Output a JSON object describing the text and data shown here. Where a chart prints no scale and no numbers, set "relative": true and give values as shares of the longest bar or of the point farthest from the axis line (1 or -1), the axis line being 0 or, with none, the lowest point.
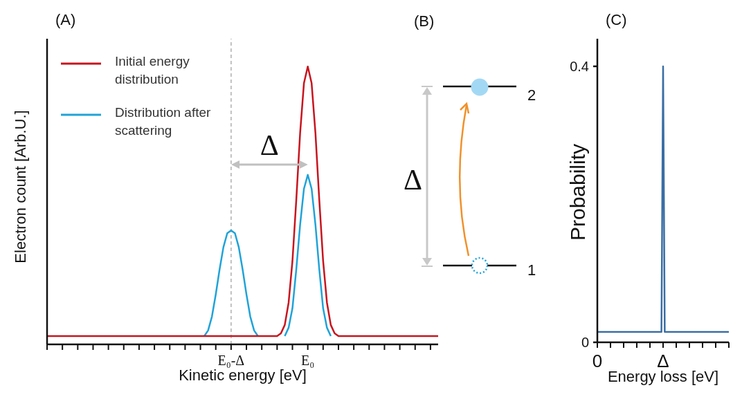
{
  "chart_data": [
    {
      "type": "line",
      "title": "(A)",
      "xlabel": "Kinetic energy [eV]",
      "ylabel": "Electron count [Arb.U.]",
      "relative": true,
      "legend": "top left",
      "categories": [
        null,
        null,
        null,
        null,
        null,
        null,
        null,
        null,
        null,
        null,
        null,
        null,
        null,
        null,
        null,
        null,
        null,
        null,
        null,
        null,
        null,
        null,
        null,
        null,
        null,
        null,
        null,
        null,
        null,
        null,
        null,
        null,
        null,
        null,
        null,
        null,
        null,
        null,
        null,
        null,
        null,
        null,
        null,
        null,
        null,
        null,
        null,
        null,
        "E₀-Δ",
        null,
        null,
        null,
        null,
        null,
        null,
        null,
        null,
        null,
        null,
        null,
        null,
        null,
        null,
        null,
        null,
        null,
        null,
        null,
        "E₀",
        null,
        null,
        null,
        null,
        null,
        null,
        null,
        null,
        null,
        null,
        null,
        null,
        null,
        null,
        null,
        null,
        null,
        null,
        null,
        null,
        null,
        null,
        null,
        null,
        null,
        null,
        null,
        null,
        null,
        null,
        null,
        null,
        null,
        null
      ],
      "series": [
        {
          "name": "Initial energy distribution",
          "color": "#c8141e",
          "values": [
            0.03,
            0.03,
            0.03,
            0.03,
            0.03,
            0.03,
            0.03,
            0.03,
            0.03,
            0.03,
            0.03,
            0.03,
            0.03,
            0.03,
            0.03,
            0.03,
            0.03,
            0.03,
            0.03,
            0.03,
            0.03,
            0.03,
            0.03,
            0.03,
            0.03,
            0.03,
            0.03,
            0.03,
            0.03,
            0.03,
            0.03,
            0.03,
            0.03,
            0.03,
            0.03,
            0.03,
            0.03,
            0.03,
            0.03,
            0.03,
            0.03,
            0.03,
            0.03,
            0.03,
            0.03,
            0.03,
            0.03,
            0.03,
            0.03,
            0.03,
            0.03,
            0.03,
            0.03,
            0.03,
            0.03,
            0.03,
            0.03,
            0.03,
            0.03,
            0.03,
            0.03,
            0.04,
            0.07,
            0.15,
            0.3,
            0.52,
            0.76,
            0.94,
            1,
            0.94,
            0.76,
            0.52,
            0.3,
            0.15,
            0.07,
            0.04,
            0.03,
            0.03,
            0.03,
            0.03,
            0.03,
            0.03,
            0.03,
            0.03,
            0.03,
            0.03,
            0.03,
            0.03,
            0.03,
            0.03,
            0.03,
            0.03,
            0.03,
            0.03,
            0.03,
            0.03,
            0.03,
            0.03,
            0.03,
            0.03,
            0.03,
            0.03,
            0.03
          ]
        },
        {
          "name": "Distribution after scattering",
          "color": "#1fa3d8",
          "values": [
            null,
            null,
            null,
            null,
            null,
            null,
            null,
            null,
            null,
            null,
            null,
            null,
            null,
            null,
            null,
            null,
            null,
            null,
            null,
            null,
            null,
            null,
            null,
            null,
            null,
            null,
            null,
            null,
            null,
            null,
            null,
            null,
            null,
            null,
            null,
            null,
            null,
            null,
            null,
            null,
            null,
            0.03,
            0.05,
            0.1,
            0.18,
            0.27,
            0.35,
            0.4,
            0.41,
            0.4,
            0.35,
            0.27,
            0.18,
            0.1,
            0.05,
            0.03,
            null,
            null,
            null,
            null,
            null,
            null,
            0.03,
            0.06,
            0.13,
            0.27,
            0.43,
            0.56,
            0.61,
            0.56,
            0.43,
            0.27,
            0.13,
            0.06,
            0.03,
            null,
            null,
            null,
            null,
            null,
            null,
            null,
            null,
            null,
            null,
            null,
            null,
            null,
            null,
            null,
            null,
            null,
            null,
            null,
            null,
            null,
            null,
            null,
            null,
            null,
            null,
            null,
            null
          ]
        }
      ],
      "ref_lines": [
        {
          "axis": "x",
          "value": "E₀-Δ",
          "color": "#c0c0c0",
          "line_style": "dashed"
        }
      ],
      "annotations": [
        "Δ"
      ]
    },
    {
      "type": "other",
      "title": "(B)",
      "annotations": [
        "Δ",
        "2",
        "1"
      ]
    },
    {
      "type": "line",
      "title": "(C)",
      "xlabel": "Energy loss [eV]",
      "ylabel": "Probability",
      "categories": [
        "0",
        null,
        null,
        null,
        null,
        null,
        null,
        null,
        null,
        null,
        null,
        null,
        null,
        null,
        null,
        null,
        null,
        null,
        null,
        null,
        null,
        null,
        null,
        null,
        null,
        null,
        null,
        null,
        null,
        null,
        null,
        null,
        null,
        null,
        null,
        null,
        null,
        null,
        null,
        null,
        "Δ",
        null,
        null,
        null,
        null,
        null,
        null,
        null,
        null,
        null,
        null,
        null,
        null,
        null,
        null,
        null,
        null,
        null,
        null,
        null,
        null,
        null,
        null,
        null,
        null,
        null,
        null,
        null,
        null,
        null,
        null,
        null,
        null,
        null,
        null,
        null,
        null,
        null,
        null,
        null,
        null
      ],
      "values": [
        0.015,
        0.015,
        0.015,
        0.015,
        0.015,
        0.015,
        0.015,
        0.015,
        0.015,
        0.015,
        0.015,
        0.015,
        0.015,
        0.015,
        0.015,
        0.015,
        0.015,
        0.015,
        0.015,
        0.015,
        0.015,
        0.015,
        0.015,
        0.015,
        0.015,
        0.015,
        0.015,
        0.015,
        0.015,
        0.015,
        0.015,
        0.015,
        0.015,
        0.015,
        0.015,
        0.015,
        0.015,
        0.015,
        0.015,
        0.015,
        0.4,
        0.015,
        0.015,
        0.015,
        0.015,
        0.015,
        0.015,
        0.015,
        0.015,
        0.015,
        0.015,
        0.015,
        0.015,
        0.015,
        0.015,
        0.015,
        0.015,
        0.015,
        0.015,
        0.015,
        0.015,
        0.015,
        0.015,
        0.015,
        0.015,
        0.015,
        0.015,
        0.015,
        0.015,
        0.015,
        0.015,
        0.015,
        0.015,
        0.015,
        0.015,
        0.015,
        0.015,
        0.015,
        0.015,
        0.015,
        0.015
      ],
      "color": "#3a6ea5",
      "ylim": [
        0,
        0.44
      ],
      "yticks": [
        0,
        0.4
      ]
    }
  ]
}
